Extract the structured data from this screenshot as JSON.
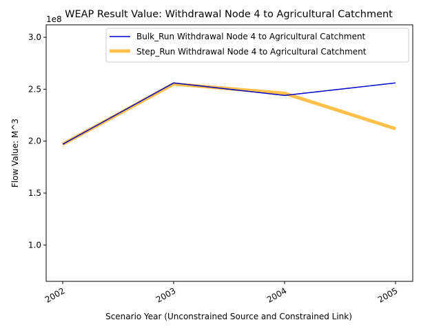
{
  "chart_data": {
    "type": "line",
    "title": "WEAP Result Value: Withdrawal Node 4 to Agricultural Catchment",
    "xlabel": "Scenario Year (Unconstrained Source and Constrained Link)",
    "ylabel": "Flow Value: M^3",
    "categories": [
      "2002",
      "2003",
      "2004",
      "2005"
    ],
    "y_offset_label": "1e8",
    "ylim": [
      0.65,
      3.12
    ],
    "y_ticks": [
      "1.0",
      "1.5",
      "2.0",
      "2.5",
      "3.0"
    ],
    "y_tick_values": [
      1.0,
      1.5,
      2.0,
      2.5,
      3.0
    ],
    "grid": false,
    "legend_position": "top-right",
    "series": [
      {
        "name": "Bulk_Run Withdrawal Node 4 to Agricultural Catchment",
        "values": [
          1.97,
          2.56,
          2.44,
          2.56
        ],
        "color": "#0000cc",
        "style": "thin"
      },
      {
        "name": "Step_Run Withdrawal Node 4 to Agricultural Catchment",
        "values": [
          1.97,
          2.55,
          2.46,
          2.12
        ],
        "color": "#ffa500",
        "style": "thick-translucent"
      }
    ]
  }
}
